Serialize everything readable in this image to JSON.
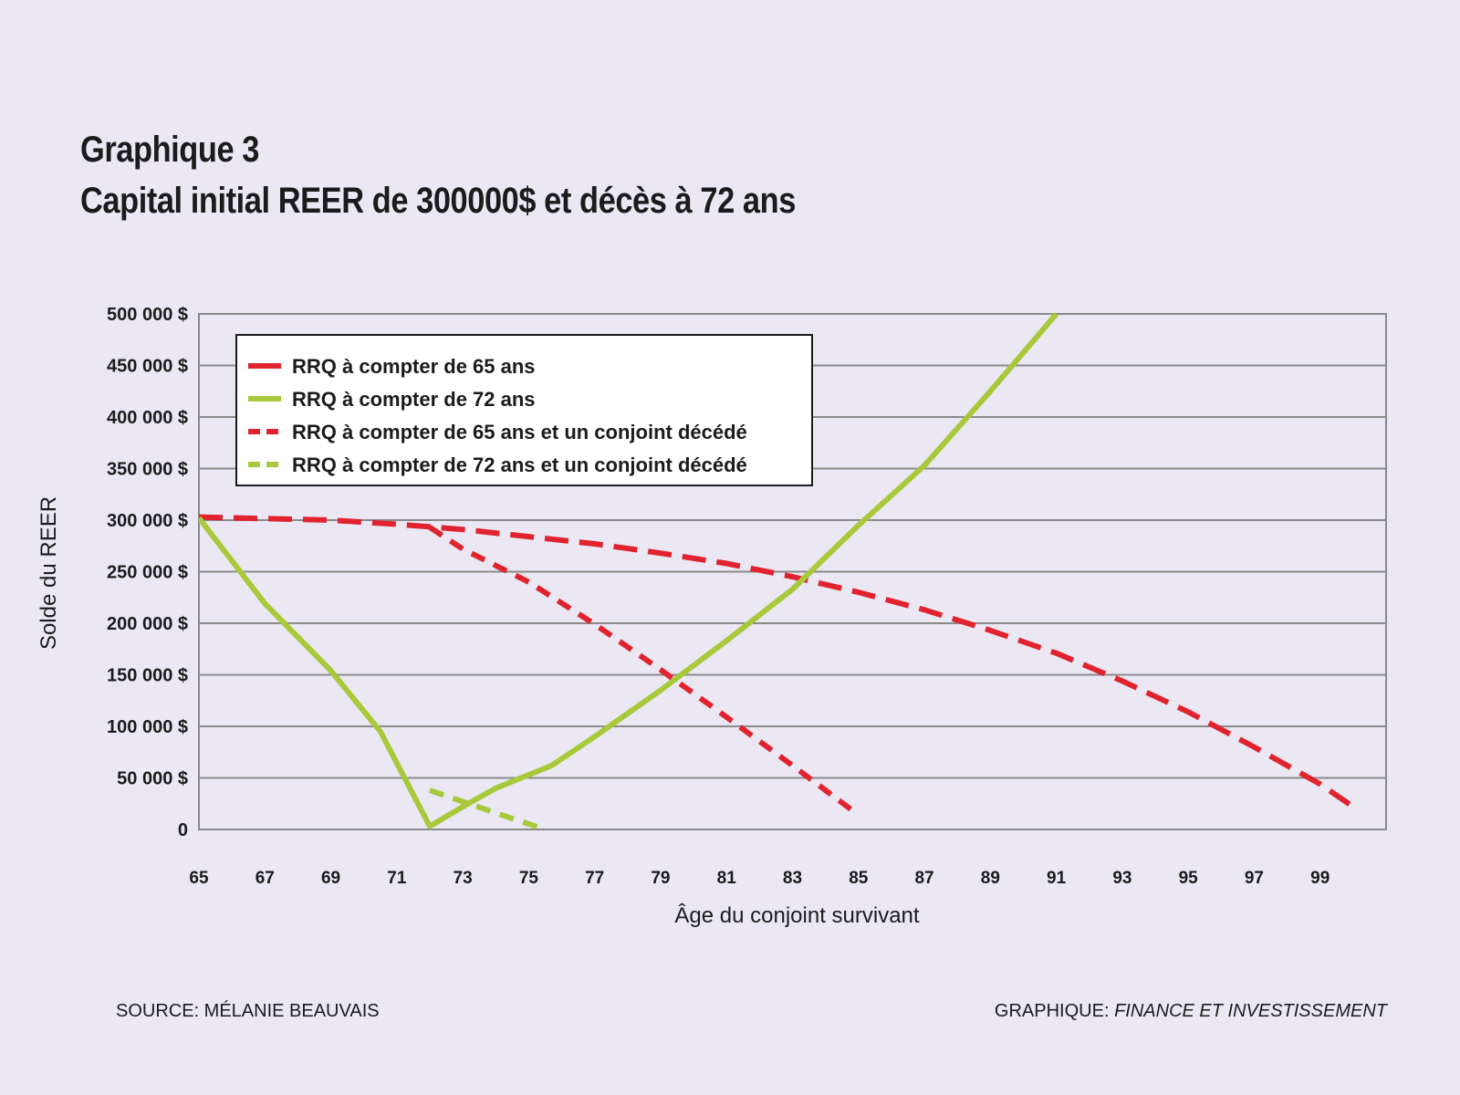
{
  "header": {
    "label": "Graphique 3",
    "title": "Capital initial REER de 300000$ et décès à 72 ans"
  },
  "footer": {
    "source": "SOURCE: MÉLANIE BEAUVAIS",
    "credit_prefix": "GRAPHIQUE:",
    "credit_publication": "FINANCE ET INVESTISSEMENT"
  },
  "chart_data": {
    "type": "line",
    "xlabel": "Âge du conjoint survivant",
    "ylabel": "Solde du REER",
    "xlim": [
      65,
      101
    ],
    "ylim": [
      0,
      500000
    ],
    "x_ticks": [
      "65",
      "67",
      "69",
      "71",
      "73",
      "75",
      "77",
      "79",
      "81",
      "83",
      "85",
      "87",
      "89",
      "91",
      "93",
      "95",
      "97",
      "99"
    ],
    "y_ticks": [
      "0",
      "50 000 $",
      "100 000 $",
      "150 000 $",
      "200 000 $",
      "250 000 $",
      "300 000 $",
      "350 000 $",
      "400 000 $",
      "450 000 $",
      "500 000 $"
    ],
    "grid": "horizontal",
    "legend_position": "top-left",
    "series": [
      {
        "name": "RRQ à compter de 65 ans",
        "color": "#e0232e",
        "style": "dash-long",
        "points": [
          [
            65,
            303000
          ],
          [
            67,
            301500
          ],
          [
            69,
            300000
          ],
          [
            71,
            296000
          ],
          [
            73,
            291000
          ],
          [
            75,
            284000
          ],
          [
            77,
            277000
          ],
          [
            79,
            268000
          ],
          [
            81,
            258000
          ],
          [
            83,
            245000
          ],
          [
            85,
            230000
          ],
          [
            87,
            213000
          ],
          [
            89,
            193000
          ],
          [
            91,
            171000
          ],
          [
            93,
            144000
          ],
          [
            95,
            114000
          ],
          [
            97,
            80000
          ],
          [
            99,
            44000
          ],
          [
            100,
            22000
          ]
        ]
      },
      {
        "name": "RRQ à compter de 72 ans",
        "color": "#a8c93a",
        "style": "solid",
        "points": [
          [
            65,
            302000
          ],
          [
            67,
            219000
          ],
          [
            69,
            154000
          ],
          [
            70.5,
            95000
          ],
          [
            72,
            3000
          ],
          [
            73,
            22000
          ],
          [
            74,
            40000
          ],
          [
            75.7,
            62000
          ],
          [
            77,
            90000
          ],
          [
            79,
            135000
          ],
          [
            81,
            183000
          ],
          [
            83,
            233000
          ],
          [
            85,
            295000
          ],
          [
            87,
            353000
          ],
          [
            89,
            425000
          ],
          [
            91,
            500000
          ]
        ]
      },
      {
        "name": "RRQ à compter de 65 ans et un conjoint décédé",
        "color": "#e0232e",
        "style": "dash-short",
        "points": [
          [
            72,
            293000
          ],
          [
            73,
            272000
          ],
          [
            75,
            240000
          ],
          [
            77,
            199000
          ],
          [
            79,
            155000
          ],
          [
            81,
            109000
          ],
          [
            83,
            62000
          ],
          [
            85,
            14000
          ]
        ]
      },
      {
        "name": "RRQ à compter de 72 ans et un conjoint décédé",
        "color": "#a8c93a",
        "style": "dash-short",
        "points": [
          [
            72,
            38000
          ],
          [
            73,
            27000
          ],
          [
            74,
            16000
          ],
          [
            75.5,
            0
          ]
        ]
      }
    ]
  }
}
